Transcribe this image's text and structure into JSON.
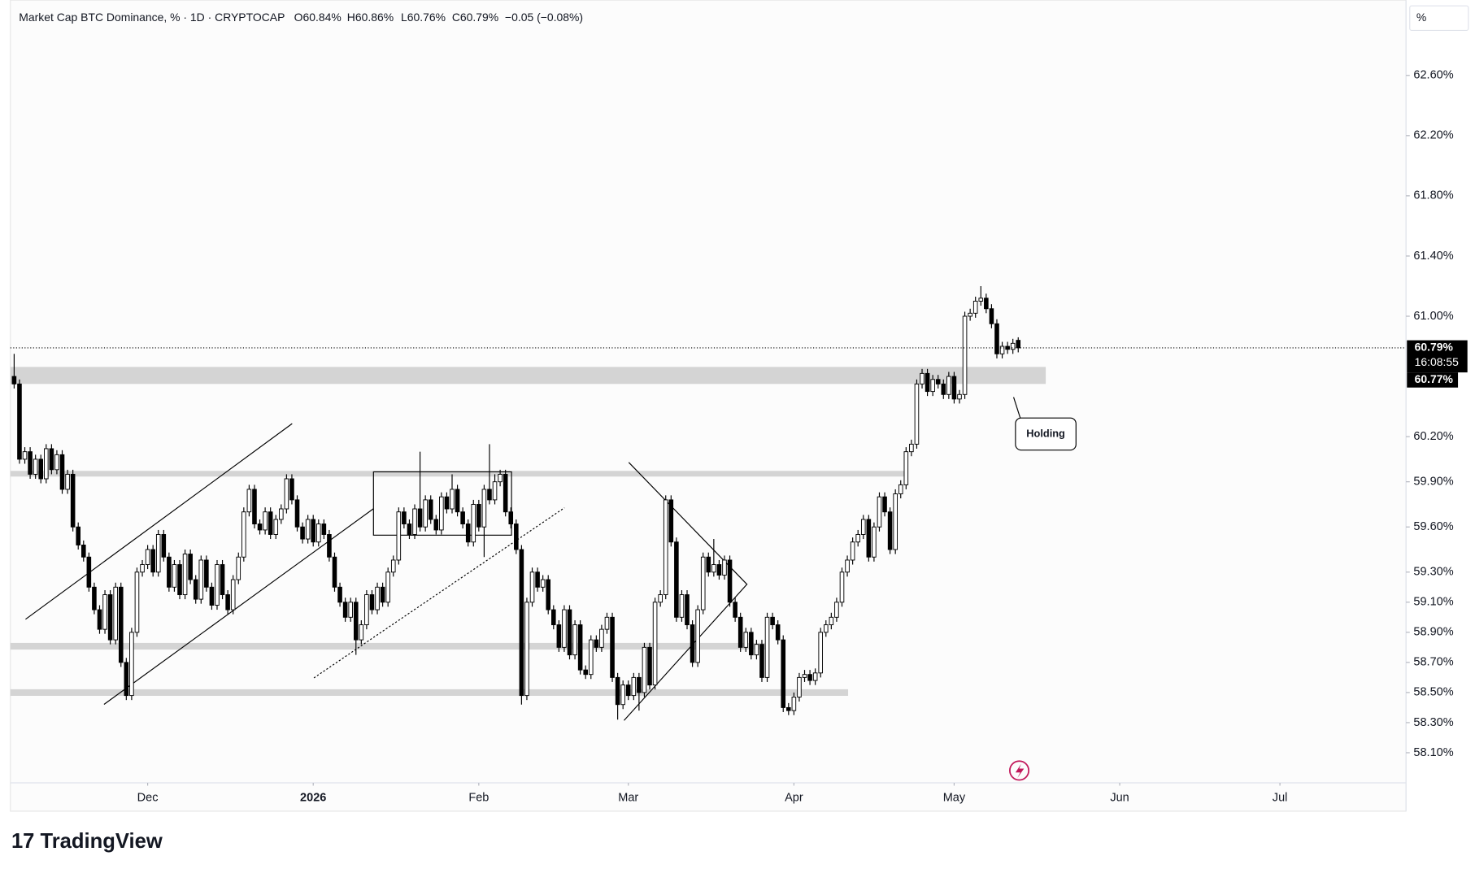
{
  "chart_data": {
    "type": "candlestick",
    "title": "Market Cap BTC Dominance, % · 1D · CRYPTOCAP",
    "legend_values": [
      "O60.84%",
      "H60.86%",
      "L60.76%",
      "C60.79%",
      "−0.05 (−0.08%)"
    ],
    "scale_unit": "%",
    "last_price_label": "60.79%",
    "countdown": "16:08:55",
    "price_line_label": "60.77%",
    "annotation": "Holding",
    "watermark": "TradingView",
    "up_color": "#ffffff",
    "down_color": "#000000",
    "border_color": "#000000",
    "grid": false,
    "xlim": [
      4.3,
      265.6
    ],
    "ylim": [
      57.9,
      63.1
    ],
    "xticks": [
      {
        "value": 30,
        "label": "Dec"
      },
      {
        "value": 61,
        "label": "2026"
      },
      {
        "value": 92,
        "label": "Feb"
      },
      {
        "value": 120,
        "label": "Mar"
      },
      {
        "value": 151,
        "label": "Apr"
      },
      {
        "value": 181,
        "label": "May"
      },
      {
        "value": 212,
        "label": "Jun"
      },
      {
        "value": 242,
        "label": "Jul"
      }
    ],
    "yticks": [
      {
        "value": 62.6,
        "label": "62.60%"
      },
      {
        "value": 62.2,
        "label": "62.20%"
      },
      {
        "value": 61.8,
        "label": "61.80%"
      },
      {
        "value": 61.4,
        "label": "61.40%"
      },
      {
        "value": 61.0,
        "label": "61.00%"
      },
      {
        "value": 60.2,
        "label": "60.20%"
      },
      {
        "value": 59.9,
        "label": "59.90%"
      },
      {
        "value": 59.6,
        "label": "59.60%"
      },
      {
        "value": 59.3,
        "label": "59.30%"
      },
      {
        "value": 59.1,
        "label": "59.10%"
      },
      {
        "value": 58.9,
        "label": "58.90%"
      },
      {
        "value": 58.7,
        "label": "58.70%"
      },
      {
        "value": 58.5,
        "label": "58.50%"
      },
      {
        "value": 58.3,
        "label": "58.30%"
      },
      {
        "value": 58.1,
        "label": "58.10%"
      }
    ],
    "x": [
      5,
      6,
      7,
      8,
      9,
      10,
      11,
      12,
      13,
      14,
      15,
      16,
      17,
      18,
      19,
      20,
      21,
      22,
      23,
      24,
      25,
      26,
      27,
      28,
      29,
      30,
      31,
      32,
      33,
      34,
      35,
      36,
      37,
      38,
      39,
      40,
      41,
      42,
      43,
      44,
      45,
      46,
      47,
      48,
      49,
      50,
      51,
      52,
      53,
      54,
      55,
      56,
      57,
      58,
      59,
      60,
      61,
      62,
      63,
      64,
      65,
      66,
      67,
      68,
      69,
      70,
      71,
      72,
      73,
      74,
      75,
      76,
      77,
      78,
      79,
      80,
      81,
      82,
      83,
      84,
      85,
      86,
      87,
      88,
      89,
      90,
      91,
      92,
      93,
      94,
      95,
      96,
      97,
      98,
      99,
      100,
      101,
      102,
      103,
      104,
      105,
      106,
      107,
      108,
      109,
      110,
      111,
      112,
      113,
      114,
      115,
      116,
      117,
      118,
      119,
      120,
      121,
      122,
      123,
      124,
      125,
      126,
      127,
      128,
      129,
      130,
      131,
      132,
      133,
      134,
      135,
      136,
      137,
      138,
      139,
      140,
      141,
      142,
      143,
      144,
      145,
      146,
      147,
      148,
      149,
      150,
      151,
      152,
      153,
      154,
      155,
      156,
      157,
      158,
      159,
      160,
      161,
      162,
      163,
      164,
      165,
      166,
      167,
      168,
      169,
      170,
      171,
      172,
      173,
      174,
      175,
      176,
      177,
      178,
      179,
      180,
      181,
      182,
      183,
      184,
      185,
      186,
      187,
      188,
      189,
      190,
      191,
      192,
      193
    ],
    "open": [
      60.6,
      60.55,
      60.05,
      60.1,
      59.95,
      60.05,
      59.92,
      60.12,
      59.98,
      60.08,
      59.85,
      59.95,
      59.6,
      59.48,
      59.4,
      59.2,
      59.05,
      58.92,
      59.15,
      58.85,
      59.2,
      58.7,
      58.48,
      58.9,
      59.3,
      59.35,
      59.45,
      59.3,
      59.55,
      59.4,
      59.2,
      59.35,
      59.15,
      59.42,
      59.25,
      59.12,
      59.38,
      59.2,
      59.08,
      59.35,
      59.15,
      59.05,
      59.25,
      59.4,
      59.7,
      59.85,
      59.62,
      59.58,
      59.7,
      59.55,
      59.65,
      59.72,
      59.92,
      59.78,
      59.6,
      59.52,
      59.65,
      59.5,
      59.62,
      59.55,
      59.4,
      59.2,
      59.1,
      59.0,
      59.1,
      58.85,
      58.95,
      59.15,
      59.05,
      59.2,
      59.1,
      59.3,
      59.38,
      59.7,
      59.62,
      59.55,
      59.72,
      59.6,
      59.78,
      59.65,
      59.58,
      59.8,
      59.72,
      59.85,
      59.7,
      59.62,
      59.5,
      59.75,
      59.6,
      59.85,
      59.78,
      59.9,
      59.95,
      59.7,
      59.62,
      59.45,
      58.48,
      59.1,
      59.3,
      59.2,
      59.25,
      59.05,
      58.95,
      58.8,
      59.05,
      58.75,
      58.95,
      58.65,
      58.62,
      58.85,
      58.8,
      58.92,
      59.0,
      58.6,
      58.42,
      58.55,
      58.48,
      58.6,
      58.5,
      58.8,
      58.55,
      59.1,
      59.15,
      59.78,
      59.5,
      59.0,
      59.15,
      58.95,
      58.7,
      59.05,
      59.4,
      59.3,
      59.35,
      59.28,
      59.38,
      59.1,
      59.0,
      58.8,
      58.9,
      58.75,
      58.82,
      58.6,
      59.0,
      58.95,
      58.85,
      58.4,
      58.38,
      58.47,
      58.6,
      58.62,
      58.58,
      58.63,
      58.9,
      58.95,
      59.0,
      59.1,
      59.3,
      59.38,
      59.5,
      59.55,
      59.65,
      59.4,
      59.6,
      59.8,
      59.7,
      59.45,
      59.82,
      59.88,
      60.1,
      60.15,
      60.55,
      60.62,
      60.5,
      60.58,
      60.55,
      60.48,
      60.6,
      60.45,
      60.48,
      61.0,
      61.02,
      61.1,
      61.12,
      61.05,
      60.95,
      60.75,
      60.8,
      60.78,
      60.84
    ],
    "high": [
      60.75,
      60.58,
      60.13,
      60.13,
      60.08,
      60.08,
      60.15,
      60.15,
      60.11,
      60.11,
      59.98,
      59.98,
      59.63,
      59.51,
      59.43,
      59.23,
      59.08,
      59.18,
      59.18,
      59.23,
      59.23,
      58.73,
      58.93,
      59.33,
      59.38,
      59.48,
      59.48,
      59.58,
      59.58,
      59.43,
      59.38,
      59.38,
      59.45,
      59.45,
      59.28,
      59.41,
      59.41,
      59.23,
      59.38,
      59.38,
      59.18,
      59.28,
      59.43,
      59.73,
      59.88,
      59.88,
      59.65,
      59.73,
      59.73,
      59.68,
      59.75,
      59.95,
      59.95,
      59.81,
      59.63,
      59.68,
      59.68,
      59.65,
      59.65,
      59.58,
      59.43,
      59.23,
      59.13,
      59.13,
      59.13,
      58.98,
      59.18,
      59.18,
      59.23,
      59.23,
      59.33,
      59.41,
      59.73,
      59.73,
      59.65,
      59.75,
      60.1,
      59.81,
      59.81,
      59.68,
      59.83,
      59.83,
      59.95,
      59.88,
      59.73,
      59.65,
      59.78,
      59.78,
      59.88,
      60.15,
      59.95,
      59.98,
      59.98,
      59.73,
      59.65,
      59.48,
      59.13,
      59.33,
      59.33,
      59.28,
      59.28,
      59.08,
      58.98,
      59.08,
      59.08,
      58.98,
      58.98,
      58.68,
      58.88,
      58.88,
      58.95,
      59.03,
      59.03,
      58.63,
      58.58,
      58.58,
      58.63,
      58.63,
      58.83,
      58.83,
      59.13,
      59.18,
      59.81,
      59.81,
      59.53,
      59.18,
      59.18,
      58.98,
      59.08,
      59.43,
      59.43,
      59.52,
      59.38,
      59.41,
      59.41,
      59.13,
      59.03,
      58.93,
      58.93,
      58.85,
      58.85,
      59.03,
      59.03,
      58.98,
      58.88,
      58.43,
      58.5,
      58.63,
      58.65,
      58.65,
      58.66,
      58.93,
      58.98,
      59.03,
      59.13,
      59.33,
      59.41,
      59.53,
      59.58,
      59.68,
      59.68,
      59.63,
      59.83,
      59.83,
      59.73,
      59.85,
      59.91,
      60.13,
      60.18,
      60.58,
      60.65,
      60.65,
      60.61,
      60.61,
      60.58,
      60.63,
      60.63,
      60.51,
      61.03,
      61.05,
      61.13,
      61.2,
      61.15,
      61.08,
      60.98,
      60.83,
      60.83,
      60.85,
      60.86
    ],
    "low": [
      60.52,
      60.02,
      60.02,
      59.92,
      59.92,
      59.89,
      59.89,
      59.95,
      59.95,
      59.82,
      59.82,
      59.57,
      59.45,
      59.37,
      59.17,
      59.02,
      58.89,
      58.89,
      58.82,
      58.82,
      58.67,
      58.45,
      58.45,
      58.87,
      59.27,
      59.32,
      59.27,
      59.27,
      59.37,
      59.17,
      59.17,
      59.12,
      59.12,
      59.22,
      59.09,
      59.09,
      59.17,
      59.05,
      59.05,
      59.12,
      59.02,
      59.02,
      59.22,
      59.37,
      59.67,
      59.59,
      59.55,
      59.55,
      59.52,
      59.52,
      59.62,
      59.69,
      59.75,
      59.57,
      59.49,
      59.49,
      59.47,
      59.47,
      59.52,
      59.37,
      59.17,
      59.07,
      58.97,
      58.97,
      58.75,
      58.82,
      58.92,
      59.02,
      59.02,
      59.07,
      59.07,
      59.27,
      59.35,
      59.59,
      59.52,
      59.52,
      59.57,
      59.57,
      59.62,
      59.55,
      59.55,
      59.69,
      59.69,
      59.67,
      59.59,
      59.47,
      59.47,
      59.57,
      59.4,
      59.75,
      59.75,
      59.87,
      59.67,
      59.59,
      59.42,
      58.42,
      58.45,
      59.07,
      59.17,
      59.17,
      59.02,
      58.92,
      58.77,
      58.77,
      58.72,
      58.72,
      58.62,
      58.59,
      58.59,
      58.77,
      58.77,
      58.89,
      58.57,
      58.32,
      58.39,
      58.45,
      58.45,
      58.38,
      58.47,
      58.52,
      58.52,
      59.07,
      59.12,
      59.47,
      58.97,
      58.97,
      58.92,
      58.67,
      58.67,
      59.02,
      59.27,
      59.27,
      59.25,
      59.25,
      59.07,
      58.97,
      58.77,
      58.77,
      58.72,
      58.72,
      58.57,
      58.57,
      58.92,
      58.82,
      58.37,
      58.35,
      58.35,
      58.44,
      58.57,
      58.55,
      58.55,
      58.6,
      58.87,
      58.92,
      58.97,
      59.07,
      59.27,
      59.35,
      59.47,
      59.52,
      59.37,
      59.37,
      59.57,
      59.67,
      59.42,
      59.42,
      59.79,
      59.85,
      60.07,
      60.12,
      60.52,
      60.47,
      60.47,
      60.52,
      60.45,
      60.45,
      60.42,
      60.42,
      60.45,
      60.97,
      60.99,
      61.07,
      61.02,
      60.92,
      60.72,
      60.72,
      60.75,
      60.75,
      60.76
    ],
    "close": [
      60.55,
      60.05,
      60.1,
      59.95,
      60.05,
      59.92,
      60.12,
      59.98,
      60.08,
      59.85,
      59.95,
      59.6,
      59.48,
      59.4,
      59.2,
      59.05,
      58.92,
      59.15,
      58.85,
      59.2,
      58.7,
      58.48,
      58.9,
      59.3,
      59.35,
      59.45,
      59.3,
      59.55,
      59.4,
      59.2,
      59.35,
      59.15,
      59.42,
      59.25,
      59.12,
      59.38,
      59.2,
      59.08,
      59.35,
      59.15,
      59.05,
      59.25,
      59.4,
      59.7,
      59.85,
      59.62,
      59.58,
      59.7,
      59.55,
      59.65,
      59.72,
      59.92,
      59.78,
      59.6,
      59.52,
      59.65,
      59.5,
      59.62,
      59.55,
      59.4,
      59.2,
      59.1,
      59.0,
      59.1,
      58.85,
      58.95,
      59.15,
      59.05,
      59.2,
      59.1,
      59.3,
      59.38,
      59.7,
      59.62,
      59.55,
      59.72,
      59.6,
      59.78,
      59.65,
      59.58,
      59.8,
      59.72,
      59.85,
      59.7,
      59.62,
      59.5,
      59.75,
      59.6,
      59.85,
      59.78,
      59.9,
      59.95,
      59.7,
      59.62,
      59.45,
      58.48,
      59.1,
      59.3,
      59.2,
      59.25,
      59.05,
      58.95,
      58.8,
      59.05,
      58.75,
      58.95,
      58.65,
      58.62,
      58.85,
      58.8,
      58.92,
      59.0,
      58.6,
      58.42,
      58.55,
      58.48,
      58.6,
      58.5,
      58.8,
      58.55,
      59.1,
      59.15,
      59.78,
      59.5,
      59.0,
      59.15,
      58.95,
      58.7,
      59.05,
      59.4,
      59.3,
      59.35,
      59.28,
      59.38,
      59.1,
      59.0,
      58.8,
      58.9,
      58.75,
      58.82,
      58.6,
      59.0,
      58.95,
      58.85,
      58.4,
      58.38,
      58.47,
      58.6,
      58.62,
      58.58,
      58.63,
      58.9,
      58.95,
      59.0,
      59.1,
      59.3,
      59.38,
      59.5,
      59.55,
      59.65,
      59.4,
      59.6,
      59.8,
      59.7,
      59.45,
      59.82,
      59.88,
      60.1,
      60.15,
      60.55,
      60.62,
      60.5,
      60.58,
      60.55,
      60.48,
      60.6,
      60.45,
      60.48,
      61.0,
      61.02,
      61.1,
      61.12,
      61.05,
      60.95,
      60.75,
      60.8,
      60.78,
      60.82,
      60.79
    ]
  }
}
